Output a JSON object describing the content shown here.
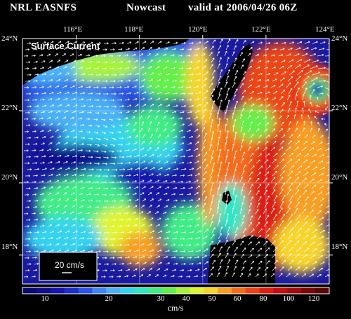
{
  "header": {
    "agency": "NRL EASNFS",
    "product": "Nowcast",
    "valid": "valid at 2006/04/26 06Z"
  },
  "map": {
    "title": "Surface Current",
    "lon_labels": [
      "116°E",
      "118°E",
      "120°E",
      "122°E",
      "124°E"
    ],
    "lat_labels": [
      "24°N",
      "22°N",
      "20°N",
      "18°N"
    ],
    "lon_range": [
      114.3,
      124.0
    ],
    "lat_range": [
      17.2,
      24.0
    ]
  },
  "reference_vector": {
    "label": "20 cm/s"
  },
  "colorbar": {
    "unit": "cm/s",
    "tick_labels": [
      "10",
      "20",
      "30",
      "40",
      "50",
      "60",
      "80",
      "100",
      "120"
    ],
    "colors": [
      "#0a0a6e",
      "#10108c",
      "#1616ad",
      "#1e2ecc",
      "#2a55e6",
      "#3f86f2",
      "#4cb1f7",
      "#34d3f0",
      "#2ee6c4",
      "#40ec86",
      "#62f04a",
      "#a6f436",
      "#e0f42e",
      "#f8d42a",
      "#fa9e22",
      "#f46c1c",
      "#ec4418",
      "#dc1e14",
      "#c01010",
      "#a00c0c",
      "#7a0808",
      "#5a0606"
    ]
  }
}
